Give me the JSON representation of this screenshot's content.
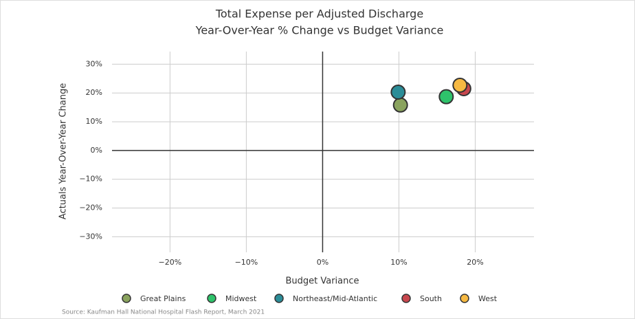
{
  "chart_data": {
    "type": "scatter",
    "title": "Total Expense per Adjusted Discharge",
    "subtitle": "Year-Over-Year % Change vs Budget Variance",
    "x_label": "Budget Variance",
    "y_label": "Actuals Year-Over-Year Change",
    "source": "Source: Kaufman Hall National Hospital Flash Report, March 2021",
    "xlim": [
      -27.6,
      27.7
    ],
    "ylim": [
      -35.4,
      34.4
    ],
    "xticks": [
      {
        "value": -20,
        "label": "−20%"
      },
      {
        "value": -10,
        "label": "−10%"
      },
      {
        "value": 0,
        "label": "0%"
      },
      {
        "value": 10,
        "label": "10%"
      },
      {
        "value": 20,
        "label": "20%"
      }
    ],
    "yticks": [
      {
        "value": -30,
        "label": "−30%"
      },
      {
        "value": -20,
        "label": "−20%"
      },
      {
        "value": -10,
        "label": "−10%"
      },
      {
        "value": 0,
        "label": "0%"
      },
      {
        "value": 10,
        "label": "10%"
      },
      {
        "value": 20,
        "label": "20%"
      },
      {
        "value": 30,
        "label": "30%"
      }
    ],
    "grid": true,
    "legend": "bottom",
    "series": [
      {
        "name": "Great Plains",
        "color": "#8aa35e",
        "x": [
          10.2
        ],
        "y": [
          15.8
        ]
      },
      {
        "name": "Midwest",
        "color": "#2ec36b",
        "x": [
          16.2
        ],
        "y": [
          18.7
        ]
      },
      {
        "name": "Northeast/Mid-Atlantic",
        "color": "#2b8d98",
        "x": [
          9.9
        ],
        "y": [
          20.3
        ]
      },
      {
        "name": "South",
        "color": "#c8474e",
        "x": [
          18.5
        ],
        "y": [
          21.5
        ]
      },
      {
        "name": "West",
        "color": "#f6b942",
        "x": [
          18.0
        ],
        "y": [
          22.7
        ]
      }
    ]
  }
}
